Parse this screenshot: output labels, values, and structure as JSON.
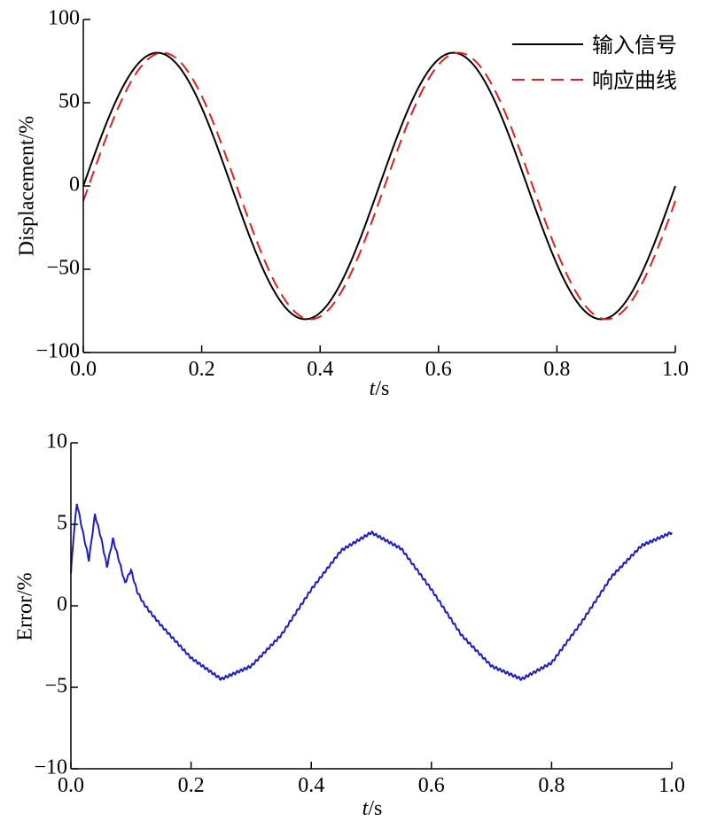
{
  "chart_data": [
    {
      "type": "line",
      "title": "",
      "xlabel_italic": "t",
      "xlabel_unit": "/s",
      "ylabel": "Displacement/%",
      "xlim": [
        0,
        1.0
      ],
      "ylim": [
        -100,
        100
      ],
      "xticks": [
        "0.0",
        "0.2",
        "0.4",
        "0.6",
        "0.8",
        "1.0"
      ],
      "xtick_values": [
        0,
        0.2,
        0.4,
        0.6,
        0.8,
        1.0
      ],
      "yticks": [
        "100",
        "50",
        "0",
        "−50",
        "−100"
      ],
      "ytick_values": [
        100,
        50,
        0,
        -50,
        -100
      ],
      "grid": false,
      "legend_position": "top-right",
      "series": [
        {
          "name": "输入信号",
          "color": "#000000",
          "dash": "solid",
          "amplitude": 80,
          "frequency_hz": 2,
          "phase_lag_s": 0,
          "x": [
            0,
            0.0625,
            0.125,
            0.1875,
            0.25,
            0.3125,
            0.375,
            0.4375,
            0.5,
            0.5625,
            0.625,
            0.6875,
            0.75,
            0.8125,
            0.875,
            0.9375,
            1.0
          ],
          "values": [
            0,
            56.6,
            80,
            56.6,
            0,
            -56.6,
            -80,
            -56.6,
            0,
            56.6,
            80,
            56.6,
            0,
            -56.6,
            -80,
            -56.6,
            0
          ]
        },
        {
          "name": "响应曲线",
          "color": "#e02020",
          "dash": "dashed",
          "amplitude": 80,
          "frequency_hz": 2,
          "phase_lag_s": 0.009,
          "x": [
            0,
            0.0625,
            0.125,
            0.1875,
            0.25,
            0.3125,
            0.375,
            0.4375,
            0.5,
            0.5625,
            0.625,
            0.6875,
            0.75,
            0.8125,
            0.875,
            0.9375,
            1.0
          ],
          "values": [
            0,
            53.1,
            79.9,
            60.0,
            4.5,
            -53.1,
            -79.9,
            -60.0,
            -4.5,
            53.1,
            79.9,
            60.0,
            4.5,
            -53.1,
            -79.9,
            -60.0,
            -4.5
          ]
        }
      ]
    },
    {
      "type": "line",
      "title": "",
      "xlabel_italic": "t",
      "xlabel_unit": "/s",
      "ylabel": "Error/%",
      "xlim": [
        0,
        1.0
      ],
      "ylim": [
        -10,
        10
      ],
      "xticks": [
        "0.0",
        "0.2",
        "0.4",
        "0.6",
        "0.8",
        "1.0"
      ],
      "xtick_values": [
        0,
        0.2,
        0.4,
        0.6,
        0.8,
        1.0
      ],
      "yticks": [
        "10",
        "5",
        "0",
        "−5",
        "−10"
      ],
      "ytick_values": [
        10,
        5,
        0,
        -5,
        -10
      ],
      "grid": false,
      "legend_position": "none",
      "series": [
        {
          "color": "#1f1fbf",
          "x": [
            0,
            0.005,
            0.01,
            0.02,
            0.03,
            0.04,
            0.05,
            0.06,
            0.07,
            0.08,
            0.09,
            0.1,
            0.11,
            0.12,
            0.13,
            0.15,
            0.2,
            0.25,
            0.3,
            0.35,
            0.4,
            0.45,
            0.5,
            0.55,
            0.6,
            0.65,
            0.7,
            0.75,
            0.8,
            0.85,
            0.9,
            0.95,
            1.0
          ],
          "values": [
            2.0,
            4.5,
            6.3,
            4.5,
            2.8,
            5.6,
            4.2,
            2.4,
            4.1,
            2.8,
            1.4,
            2.2,
            0.9,
            0.2,
            -0.3,
            -1.2,
            -3.2,
            -4.5,
            -3.7,
            -1.8,
            1.0,
            3.4,
            4.5,
            3.5,
            1.0,
            -1.8,
            -3.7,
            -4.5,
            -3.5,
            -1.0,
            1.8,
            3.7,
            4.5
          ]
        }
      ]
    }
  ]
}
